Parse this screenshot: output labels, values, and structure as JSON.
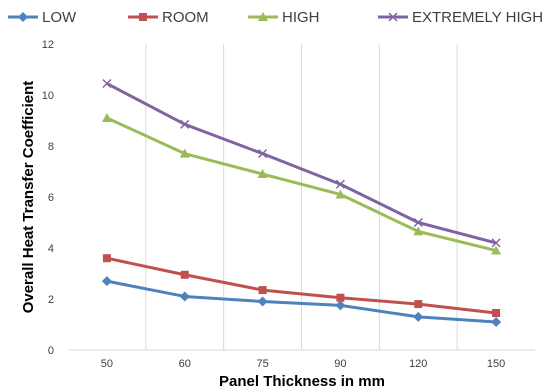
{
  "chart_data": {
    "type": "line",
    "title": "",
    "xlabel": "Panel Thickness in mm",
    "ylabel": "Overall Heat Transfer Coefficient",
    "categories": [
      "50",
      "60",
      "75",
      "90",
      "120",
      "150"
    ],
    "ylim": [
      0,
      12
    ],
    "yticks": [
      0,
      2,
      4,
      6,
      8,
      10,
      12
    ],
    "grid": "vertical",
    "legend_position": "top",
    "series": [
      {
        "name": "LOW",
        "color": "#4f81bd",
        "marker": "diamond",
        "values": [
          2.7,
          2.1,
          1.9,
          1.75,
          1.3,
          1.1
        ]
      },
      {
        "name": "ROOM",
        "color": "#c0504d",
        "marker": "square",
        "values": [
          3.6,
          2.95,
          2.35,
          2.05,
          1.8,
          1.45
        ]
      },
      {
        "name": "HIGH",
        "color": "#9bbb59",
        "marker": "triangle",
        "values": [
          9.1,
          7.7,
          6.9,
          6.1,
          4.65,
          3.9
        ]
      },
      {
        "name": "EXTREMELY HIGH",
        "color": "#8064a2",
        "marker": "x",
        "values": [
          10.45,
          8.85,
          7.7,
          6.5,
          5.0,
          4.2
        ]
      }
    ]
  }
}
